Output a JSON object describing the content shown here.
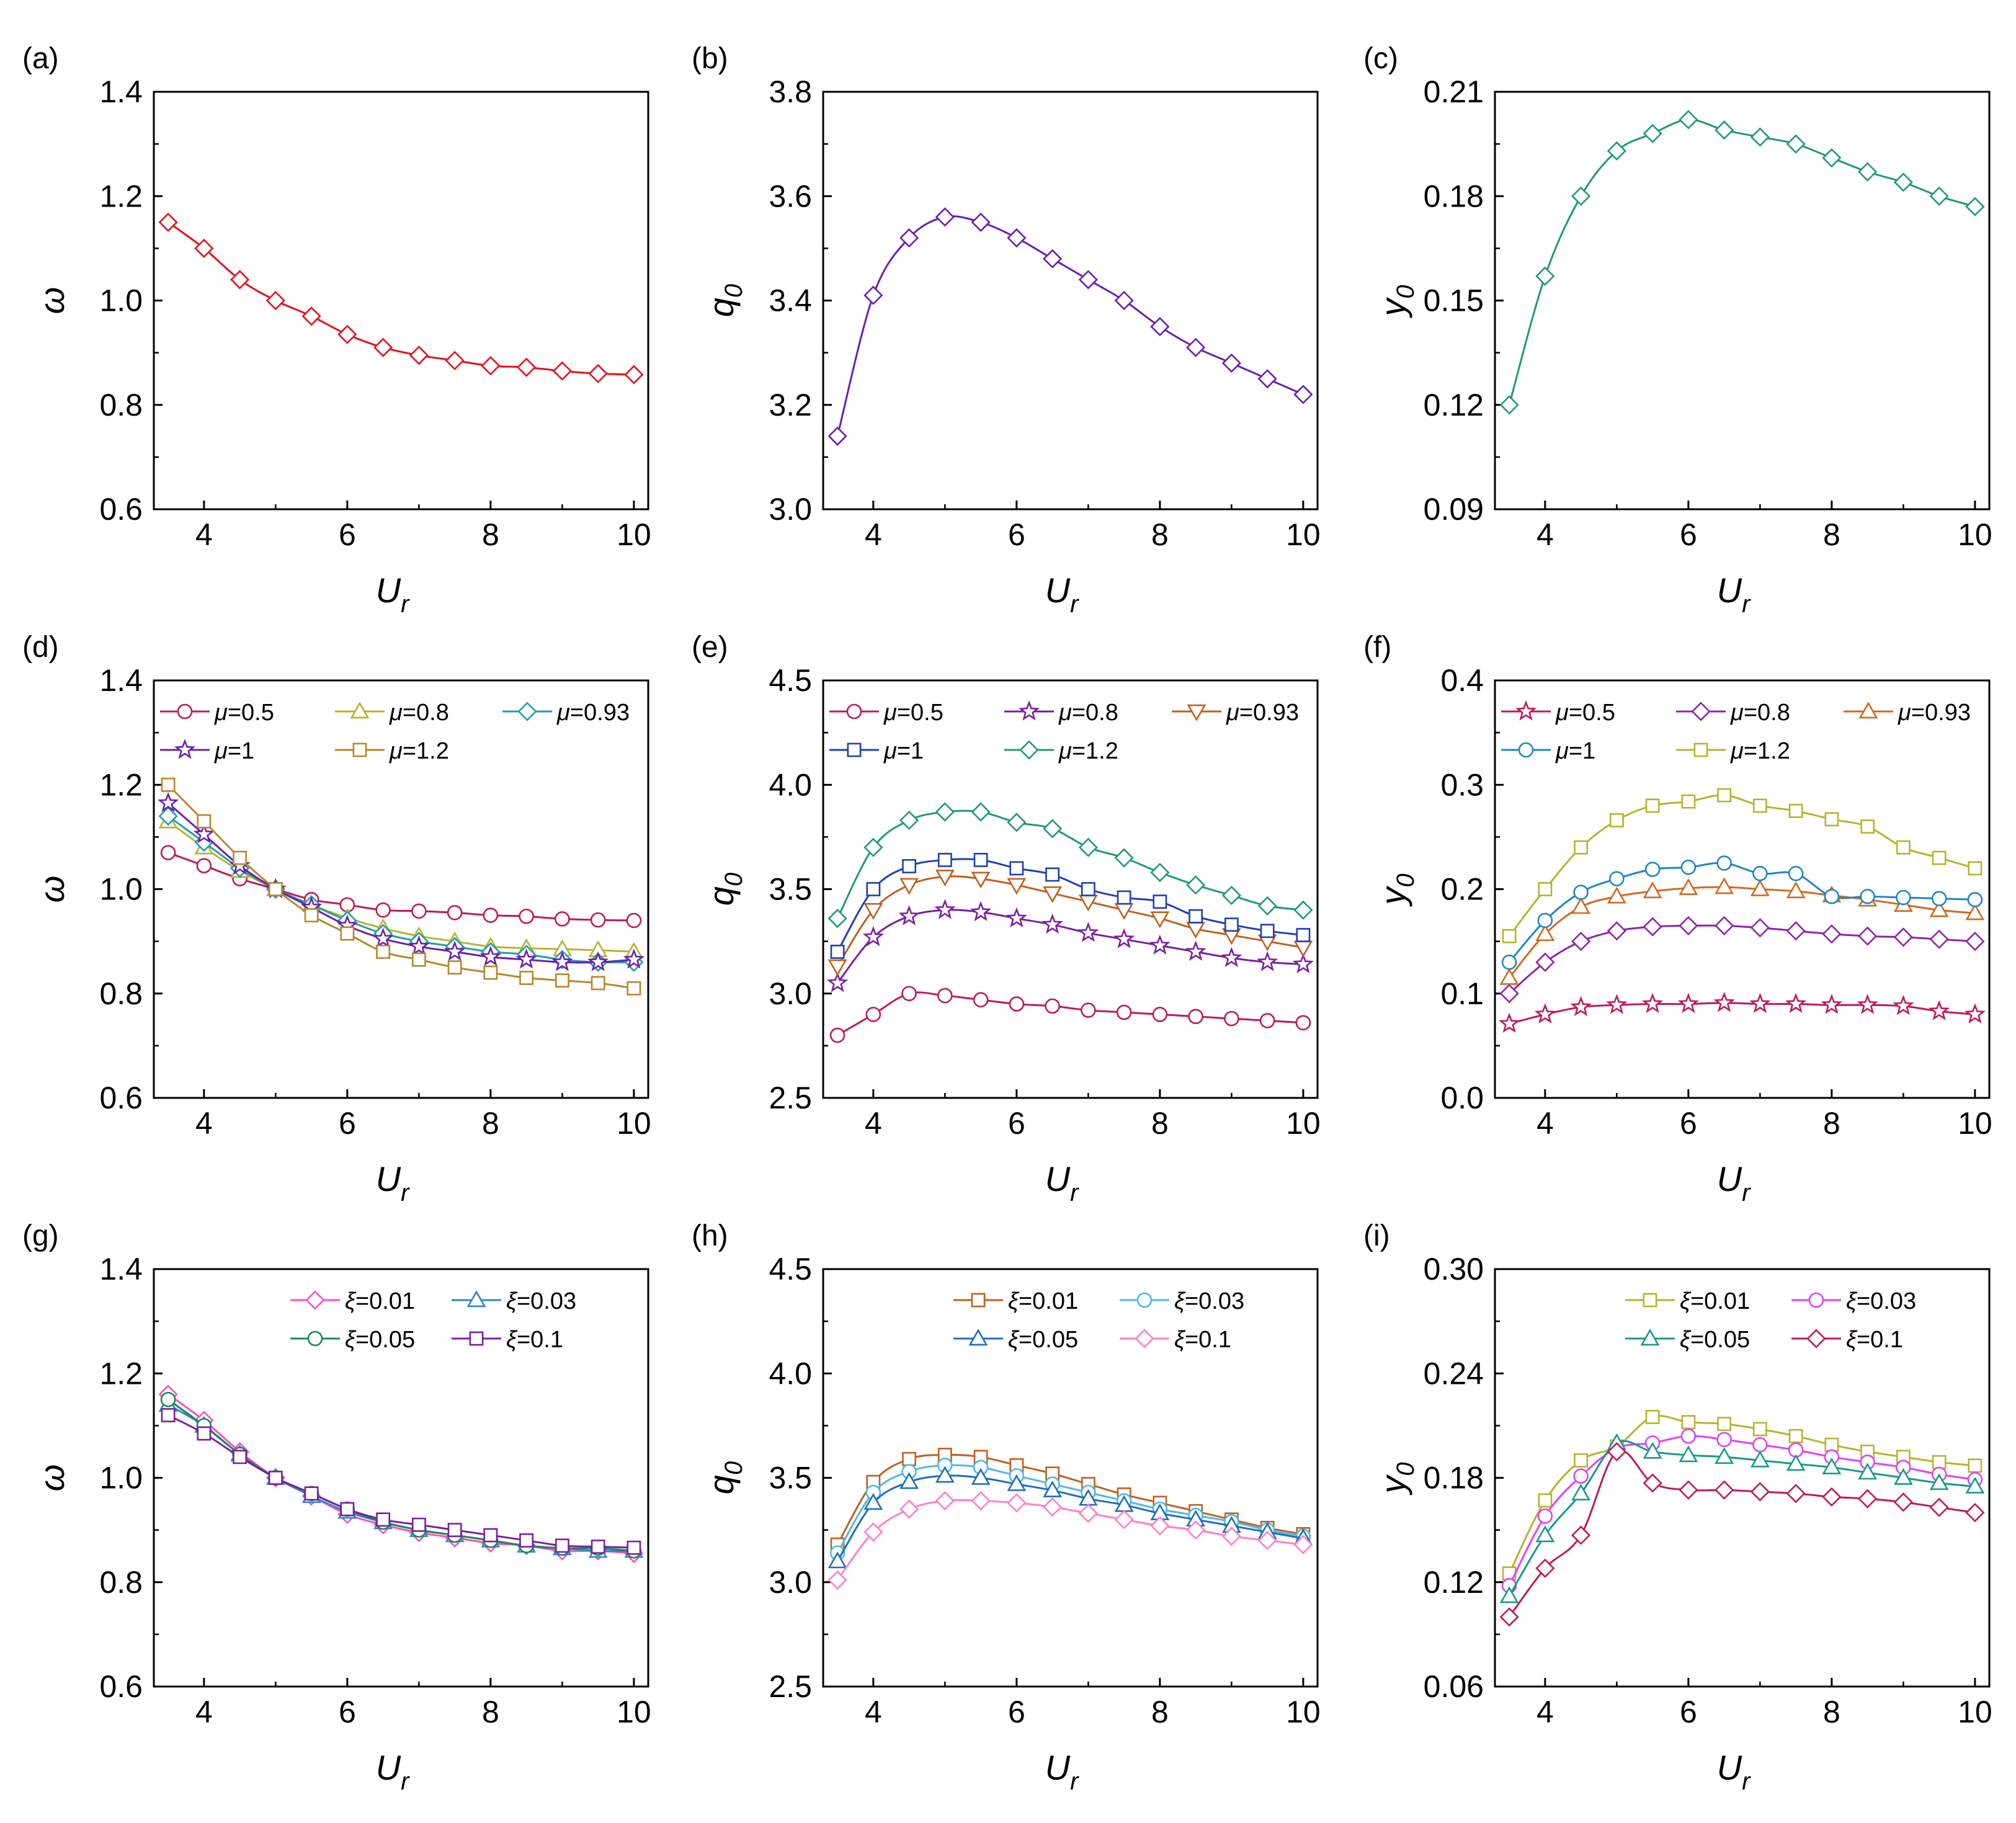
{
  "chart_data": [
    {
      "panel": "(a)",
      "type": "line",
      "xlabel": "U",
      "xlabel_sub": "r",
      "ylabel": "ω",
      "ylabel_sub": "",
      "xlim": [
        3.3,
        10.2
      ],
      "xticks": [
        4,
        6,
        8,
        10
      ],
      "ylim": [
        0.6,
        1.4
      ],
      "yticks": [
        0.6,
        0.8,
        1.0,
        1.2,
        1.4
      ],
      "yticklabels": [
        "0.6",
        "0.8",
        "1.0",
        "1.2",
        "1.4"
      ],
      "x": [
        3.5,
        4,
        4.5,
        5,
        5.5,
        6,
        6.5,
        7,
        7.5,
        8,
        8.5,
        9,
        9.5,
        10
      ],
      "legend": null,
      "series": [
        {
          "name": "",
          "color": "#e8101a",
          "marker": "diamond",
          "values": [
            1.15,
            1.1,
            1.04,
            1.0,
            0.97,
            0.935,
            0.91,
            0.895,
            0.885,
            0.875,
            0.872,
            0.865,
            0.86,
            0.858
          ]
        }
      ]
    },
    {
      "panel": "(b)",
      "type": "line",
      "xlabel": "U",
      "xlabel_sub": "r",
      "ylabel": "q",
      "ylabel_sub": "0",
      "xlim": [
        3.3,
        10.2
      ],
      "xticks": [
        4,
        6,
        8,
        10
      ],
      "ylim": [
        3.0,
        3.8
      ],
      "yticks": [
        3.0,
        3.2,
        3.4,
        3.6,
        3.8
      ],
      "yticklabels": [
        "3.0",
        "3.2",
        "3.4",
        "3.6",
        "3.8"
      ],
      "x": [
        3.5,
        4,
        4.5,
        5,
        5.5,
        6,
        6.5,
        7,
        7.5,
        8,
        8.5,
        9,
        9.5,
        10
      ],
      "legend": null,
      "series": [
        {
          "name": "",
          "color": "#6a1fb2",
          "marker": "diamond",
          "values": [
            3.14,
            3.41,
            3.52,
            3.56,
            3.55,
            3.52,
            3.48,
            3.44,
            3.4,
            3.35,
            3.31,
            3.28,
            3.25,
            3.22
          ]
        }
      ]
    },
    {
      "panel": "(c)",
      "type": "line",
      "xlabel": "U",
      "xlabel_sub": "r",
      "ylabel": "y",
      "ylabel_sub": "0",
      "xlim": [
        3.3,
        10.2
      ],
      "xticks": [
        4,
        6,
        8,
        10
      ],
      "ylim": [
        0.09,
        0.21
      ],
      "yticks": [
        0.09,
        0.12,
        0.15,
        0.18,
        0.21
      ],
      "yticklabels": [
        "0.09",
        "0.12",
        "0.15",
        "0.18",
        "0.21"
      ],
      "x": [
        3.5,
        4,
        4.5,
        5,
        5.5,
        6,
        6.5,
        7,
        7.5,
        8,
        8.5,
        9,
        9.5,
        10
      ],
      "legend": null,
      "series": [
        {
          "name": "",
          "color": "#1f9a73",
          "marker": "diamond",
          "values": [
            0.12,
            0.157,
            0.18,
            0.193,
            0.198,
            0.202,
            0.199,
            0.197,
            0.195,
            0.191,
            0.187,
            0.184,
            0.18,
            0.177
          ]
        }
      ]
    },
    {
      "panel": "(d)",
      "type": "line",
      "xlabel": "U",
      "xlabel_sub": "r",
      "ylabel": "ω",
      "ylabel_sub": "",
      "xlim": [
        3.3,
        10.2
      ],
      "xticks": [
        4,
        6,
        8,
        10
      ],
      "ylim": [
        0.6,
        1.4
      ],
      "yticks": [
        0.6,
        0.8,
        1.0,
        1.2,
        1.4
      ],
      "yticklabels": [
        "0.6",
        "0.8",
        "1.0",
        "1.2",
        "1.4"
      ],
      "x": [
        3.5,
        4,
        4.5,
        5,
        5.5,
        6,
        6.5,
        7,
        7.5,
        8,
        8.5,
        9,
        9.5,
        10
      ],
      "legend": {
        "sym": "μ",
        "cols": 3,
        "col_offsets": [
          0,
          282,
          552
        ],
        "fontsize": 38
      },
      "series": [
        {
          "name": "=0.5",
          "color": "#c2185b",
          "marker": "circle",
          "values": [
            1.07,
            1.045,
            1.02,
            1.0,
            0.98,
            0.97,
            0.96,
            0.958,
            0.955,
            0.95,
            0.948,
            0.943,
            0.941,
            0.94
          ]
        },
        {
          "name": "=0.8",
          "color": "#b5b52c",
          "marker": "triangle",
          "values": [
            1.13,
            1.08,
            1.035,
            1.0,
            0.97,
            0.945,
            0.925,
            0.91,
            0.9,
            0.89,
            0.887,
            0.885,
            0.883,
            0.88
          ]
        },
        {
          "name": "=0.93",
          "color": "#20a0a8",
          "marker": "diamond",
          "values": [
            1.14,
            1.09,
            1.04,
            1.0,
            0.97,
            0.94,
            0.915,
            0.9,
            0.89,
            0.88,
            0.875,
            0.865,
            0.86,
            0.86
          ]
        },
        {
          "name": "=1",
          "color": "#6a1fb2",
          "marker": "star",
          "values": [
            1.165,
            1.105,
            1.045,
            1.0,
            0.965,
            0.93,
            0.905,
            0.89,
            0.88,
            0.87,
            0.865,
            0.86,
            0.86,
            0.865
          ]
        },
        {
          "name": "=1.2",
          "color": "#b8862a",
          "marker": "square",
          "values": [
            1.2,
            1.13,
            1.06,
            1.0,
            0.95,
            0.915,
            0.88,
            0.865,
            0.85,
            0.84,
            0.83,
            0.825,
            0.82,
            0.81
          ]
        }
      ]
    },
    {
      "panel": "(e)",
      "type": "line",
      "xlabel": "U",
      "xlabel_sub": "r",
      "ylabel": "q",
      "ylabel_sub": "0",
      "xlim": [
        3.3,
        10.2
      ],
      "xticks": [
        4,
        6,
        8,
        10
      ],
      "ylim": [
        2.5,
        4.5
      ],
      "yticks": [
        2.5,
        3.0,
        3.5,
        4.0,
        4.5
      ],
      "yticklabels": [
        "2.5",
        "3.0",
        "3.5",
        "4.0",
        "4.5"
      ],
      "x": [
        3.5,
        4,
        4.5,
        5,
        5.5,
        6,
        6.5,
        7,
        7.5,
        8,
        8.5,
        9,
        9.5,
        10
      ],
      "legend": {
        "sym": "μ",
        "cols": 3,
        "col_offsets": [
          0,
          282,
          552
        ],
        "fontsize": 38
      },
      "series": [
        {
          "name": "=0.5",
          "color": "#c2185b",
          "marker": "circle",
          "values": [
            2.8,
            2.9,
            3.0,
            2.99,
            2.97,
            2.95,
            2.94,
            2.92,
            2.91,
            2.9,
            2.89,
            2.88,
            2.87,
            2.86
          ]
        },
        {
          "name": "=0.8",
          "color": "#7b1fa2",
          "marker": "star",
          "values": [
            3.05,
            3.27,
            3.37,
            3.4,
            3.39,
            3.36,
            3.33,
            3.29,
            3.26,
            3.23,
            3.2,
            3.17,
            3.15,
            3.14
          ]
        },
        {
          "name": "=0.93",
          "color": "#c0601f",
          "marker": "tridown",
          "values": [
            3.13,
            3.4,
            3.52,
            3.56,
            3.55,
            3.52,
            3.48,
            3.44,
            3.4,
            3.36,
            3.31,
            3.28,
            3.25,
            3.22
          ]
        },
        {
          "name": "=1",
          "color": "#1f3fb8",
          "marker": "square",
          "values": [
            3.2,
            3.5,
            3.61,
            3.64,
            3.64,
            3.6,
            3.57,
            3.5,
            3.46,
            3.44,
            3.37,
            3.33,
            3.3,
            3.28
          ]
        },
        {
          "name": "=1.2",
          "color": "#1f9a73",
          "marker": "diamond",
          "values": [
            3.36,
            3.7,
            3.83,
            3.87,
            3.87,
            3.82,
            3.79,
            3.7,
            3.65,
            3.58,
            3.52,
            3.47,
            3.42,
            3.4
          ]
        }
      ]
    },
    {
      "panel": "(f)",
      "type": "line",
      "xlabel": "U",
      "xlabel_sub": "r",
      "ylabel": "y",
      "ylabel_sub": "0",
      "xlim": [
        3.3,
        10.2
      ],
      "xticks": [
        4,
        6,
        8,
        10
      ],
      "ylim": [
        0.0,
        0.4
      ],
      "yticks": [
        0.0,
        0.1,
        0.2,
        0.3,
        0.4
      ],
      "yticklabels": [
        "0.0",
        "0.1",
        "0.2",
        "0.3",
        "0.4"
      ],
      "x": [
        3.5,
        4,
        4.5,
        5,
        5.5,
        6,
        6.5,
        7,
        7.5,
        8,
        8.5,
        9,
        9.5,
        10
      ],
      "legend": {
        "sym": "μ",
        "cols": 3,
        "col_offsets": [
          0,
          282,
          552
        ],
        "fontsize": 38
      },
      "series": [
        {
          "name": "=0.5",
          "color": "#c2185b",
          "marker": "star",
          "values": [
            0.071,
            0.08,
            0.087,
            0.089,
            0.09,
            0.09,
            0.091,
            0.09,
            0.09,
            0.089,
            0.089,
            0.088,
            0.083,
            0.08
          ]
        },
        {
          "name": "=0.8",
          "color": "#8e24aa",
          "marker": "diamond",
          "values": [
            0.1,
            0.13,
            0.15,
            0.16,
            0.164,
            0.165,
            0.165,
            0.163,
            0.16,
            0.157,
            0.155,
            0.154,
            0.152,
            0.15
          ]
        },
        {
          "name": "=0.93",
          "color": "#d2691e",
          "marker": "triangle",
          "values": [
            0.115,
            0.157,
            0.183,
            0.193,
            0.198,
            0.201,
            0.202,
            0.2,
            0.198,
            0.194,
            0.19,
            0.185,
            0.18,
            0.177
          ]
        },
        {
          "name": "=1",
          "color": "#1f86c8",
          "marker": "circle",
          "values": [
            0.13,
            0.17,
            0.197,
            0.21,
            0.219,
            0.221,
            0.225,
            0.215,
            0.215,
            0.193,
            0.193,
            0.192,
            0.191,
            0.19
          ]
        },
        {
          "name": "=1.2",
          "color": "#b5b52c",
          "marker": "square",
          "values": [
            0.155,
            0.2,
            0.24,
            0.266,
            0.28,
            0.284,
            0.29,
            0.28,
            0.275,
            0.267,
            0.26,
            0.24,
            0.23,
            0.22
          ]
        }
      ]
    },
    {
      "panel": "(g)",
      "type": "line",
      "xlabel": "U",
      "xlabel_sub": "r",
      "ylabel": "ω",
      "ylabel_sub": "",
      "xlim": [
        3.3,
        10.2
      ],
      "xticks": [
        4,
        6,
        8,
        10
      ],
      "ylim": [
        0.6,
        1.4
      ],
      "yticks": [
        0.6,
        0.8,
        1.0,
        1.2,
        1.4
      ],
      "yticklabels": [
        "0.6",
        "0.8",
        "1.0",
        "1.2",
        "1.4"
      ],
      "x": [
        3.5,
        4,
        4.5,
        5,
        5.5,
        6,
        6.5,
        7,
        7.5,
        8,
        8.5,
        9,
        9.5,
        10
      ],
      "legend": {
        "sym": "ξ",
        "cols": 2,
        "col_offsets": [
          210,
          470
        ],
        "fontsize": 38
      },
      "series": [
        {
          "name": "=0.01",
          "color": "#ff4fc0",
          "marker": "diamond",
          "values": [
            1.16,
            1.11,
            1.05,
            1.0,
            0.965,
            0.93,
            0.91,
            0.895,
            0.885,
            0.875,
            0.87,
            0.86,
            0.86,
            0.855
          ]
        },
        {
          "name": "=0.03",
          "color": "#2f86c8",
          "marker": "triangle",
          "values": [
            1.14,
            1.1,
            1.045,
            1.0,
            0.965,
            0.935,
            0.915,
            0.9,
            0.89,
            0.88,
            0.87,
            0.865,
            0.86,
            0.86
          ]
        },
        {
          "name": "=0.05",
          "color": "#1a8a55",
          "marker": "circle",
          "values": [
            1.15,
            1.1,
            1.045,
            1.0,
            0.97,
            0.94,
            0.915,
            0.9,
            0.89,
            0.88,
            0.87,
            0.865,
            0.865,
            0.86
          ]
        },
        {
          "name": "=0.1",
          "color": "#7b1fa2",
          "marker": "square",
          "values": [
            1.12,
            1.085,
            1.04,
            1.0,
            0.97,
            0.94,
            0.92,
            0.91,
            0.9,
            0.89,
            0.88,
            0.87,
            0.868,
            0.866
          ]
        }
      ]
    },
    {
      "panel": "(h)",
      "type": "line",
      "xlabel": "U",
      "xlabel_sub": "r",
      "ylabel": "q",
      "ylabel_sub": "0",
      "xlim": [
        3.3,
        10.2
      ],
      "xticks": [
        4,
        6,
        8,
        10
      ],
      "ylim": [
        2.5,
        4.5
      ],
      "yticks": [
        2.5,
        3.0,
        3.5,
        4.0,
        4.5
      ],
      "yticklabels": [
        "2.5",
        "3.0",
        "3.5",
        "4.0",
        "4.5"
      ],
      "x": [
        3.5,
        4,
        4.5,
        5,
        5.5,
        6,
        6.5,
        7,
        7.5,
        8,
        8.5,
        9,
        9.5,
        10
      ],
      "legend": {
        "sym": "ξ",
        "cols": 2,
        "col_offsets": [
          200,
          468
        ],
        "fontsize": 38
      },
      "series": [
        {
          "name": "=0.01",
          "color": "#c0601f",
          "marker": "square",
          "values": [
            3.18,
            3.48,
            3.59,
            3.61,
            3.6,
            3.56,
            3.52,
            3.47,
            3.42,
            3.38,
            3.34,
            3.3,
            3.26,
            3.23
          ]
        },
        {
          "name": "=0.03",
          "color": "#4fb8e8",
          "marker": "circle",
          "values": [
            3.14,
            3.43,
            3.53,
            3.56,
            3.55,
            3.51,
            3.47,
            3.43,
            3.39,
            3.35,
            3.32,
            3.29,
            3.25,
            3.22
          ]
        },
        {
          "name": "=0.05",
          "color": "#1f6fb8",
          "marker": "triangle",
          "values": [
            3.1,
            3.38,
            3.48,
            3.51,
            3.5,
            3.47,
            3.44,
            3.4,
            3.37,
            3.33,
            3.3,
            3.27,
            3.24,
            3.21
          ]
        },
        {
          "name": "=0.1",
          "color": "#ff7fc8",
          "marker": "diamond",
          "values": [
            3.01,
            3.24,
            3.35,
            3.39,
            3.39,
            3.38,
            3.36,
            3.33,
            3.3,
            3.27,
            3.25,
            3.22,
            3.2,
            3.18
          ]
        }
      ]
    },
    {
      "panel": "(i)",
      "type": "line",
      "xlabel": "U",
      "xlabel_sub": "r",
      "ylabel": "y",
      "ylabel_sub": "0",
      "xlim": [
        3.3,
        10.2
      ],
      "xticks": [
        4,
        6,
        8,
        10
      ],
      "ylim": [
        0.06,
        0.3
      ],
      "yticks": [
        0.06,
        0.12,
        0.18,
        0.24,
        0.3
      ],
      "yticklabels": [
        "0.06",
        "0.12",
        "0.18",
        "0.24",
        "0.30"
      ],
      "x": [
        3.5,
        4,
        4.5,
        5,
        5.5,
        6,
        6.5,
        7,
        7.5,
        8,
        8.5,
        9,
        9.5,
        10
      ],
      "legend": {
        "sym": "ξ",
        "cols": 2,
        "col_offsets": [
          200,
          468
        ],
        "fontsize": 38
      },
      "series": [
        {
          "name": "=0.01",
          "color": "#b5b52c",
          "marker": "square",
          "values": [
            0.125,
            0.167,
            0.19,
            0.198,
            0.215,
            0.212,
            0.211,
            0.208,
            0.204,
            0.199,
            0.195,
            0.192,
            0.189,
            0.187
          ]
        },
        {
          "name": "=0.03",
          "color": "#e040fb",
          "marker": "circle",
          "values": [
            0.118,
            0.158,
            0.181,
            0.197,
            0.2,
            0.204,
            0.202,
            0.199,
            0.196,
            0.192,
            0.189,
            0.186,
            0.182,
            0.179
          ]
        },
        {
          "name": "=0.05",
          "color": "#169a8a",
          "marker": "triangle",
          "values": [
            0.112,
            0.147,
            0.171,
            0.2,
            0.195,
            0.193,
            0.192,
            0.19,
            0.188,
            0.186,
            0.183,
            0.18,
            0.177,
            0.175
          ]
        },
        {
          "name": "=0.1",
          "color": "#c2185b",
          "marker": "diamond",
          "values": [
            0.1,
            0.128,
            0.147,
            0.195,
            0.177,
            0.173,
            0.173,
            0.172,
            0.171,
            0.169,
            0.168,
            0.166,
            0.163,
            0.16
          ]
        }
      ]
    }
  ]
}
